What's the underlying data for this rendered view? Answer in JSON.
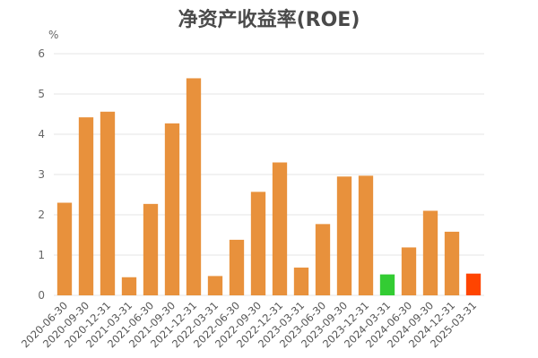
{
  "chart_data": {
    "type": "bar",
    "title": "净资产收益率(ROE)",
    "ylabel": "%",
    "xlabel": "",
    "ylim": [
      0,
      6
    ],
    "yticks": [
      0,
      1,
      2,
      3,
      4,
      5,
      6
    ],
    "grid": true,
    "categories": [
      "2020-06-30",
      "2020-09-30",
      "2020-12-31",
      "2021-03-31",
      "2021-06-30",
      "2021-09-30",
      "2021-12-31",
      "2022-03-31",
      "2022-06-30",
      "2022-09-30",
      "2022-12-31",
      "2023-03-31",
      "2023-06-30",
      "2023-09-30",
      "2023-12-31",
      "2024-03-31",
      "2024-06-30",
      "2024-09-30",
      "2024-12-31",
      "2025-03-31"
    ],
    "values": [
      2.3,
      4.42,
      4.56,
      0.45,
      2.27,
      4.27,
      5.39,
      0.48,
      1.38,
      2.57,
      3.3,
      0.69,
      1.77,
      2.95,
      2.97,
      0.52,
      1.19,
      2.1,
      1.58,
      0.54
    ],
    "colors": {
      "default": "#e8913c",
      "highlight_green": "#33cc33",
      "highlight_red": "#ff4400",
      "grid": "#e6e6e6"
    },
    "bar_colors": [
      "default",
      "default",
      "default",
      "default",
      "default",
      "default",
      "default",
      "default",
      "default",
      "default",
      "default",
      "default",
      "default",
      "default",
      "default",
      "highlight_green",
      "default",
      "default",
      "default",
      "highlight_red"
    ]
  }
}
